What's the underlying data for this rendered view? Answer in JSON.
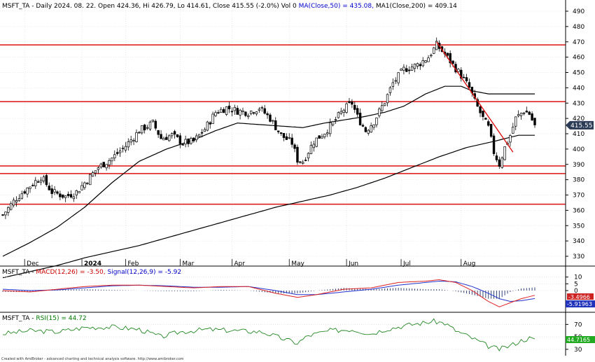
{
  "chart_data": [
    {
      "type": "candlestick",
      "title": "MSFT_TA - Daily 2024. 08. 22. Open 424.36, Hi 426.79, Lo 414.61, Close 415.55 (-2.0%) Vol 0",
      "ma50_label": "MA(Close,50) = 435.08,",
      "ma200_label": "MA1(Close,200) = 409.14",
      "ylim": [
        325,
        495
      ],
      "yticks": [
        330,
        340,
        350,
        360,
        370,
        380,
        390,
        400,
        410,
        420,
        430,
        440,
        450,
        460,
        470,
        480,
        490
      ],
      "x_labels": [
        {
          "label": "Dec",
          "index": 8
        },
        {
          "label": "2024",
          "index": 29,
          "bold": true
        },
        {
          "label": "Feb",
          "index": 45
        },
        {
          "label": "Mar",
          "index": 65
        },
        {
          "label": "Apr",
          "index": 84
        },
        {
          "label": "May",
          "index": 105
        },
        {
          "label": "Jun",
          "index": 126
        },
        {
          "label": "Jul",
          "index": 146
        },
        {
          "label": "Aug",
          "index": 168
        }
      ],
      "last_price_label": "415.55",
      "horizontal_lines": [
        468,
        431,
        389,
        384,
        364
      ],
      "trendline": [
        [
          159,
          470
        ],
        [
          187,
          398
        ]
      ],
      "ma50_nodes": [
        [
          0,
          330
        ],
        [
          10,
          339
        ],
        [
          20,
          349
        ],
        [
          30,
          362
        ],
        [
          40,
          378
        ],
        [
          50,
          392
        ],
        [
          60,
          400
        ],
        [
          70,
          406
        ],
        [
          78,
          412
        ],
        [
          86,
          417
        ],
        [
          94,
          416
        ],
        [
          102,
          415
        ],
        [
          110,
          414
        ],
        [
          118,
          417
        ],
        [
          125,
          419
        ],
        [
          132,
          421
        ],
        [
          140,
          424
        ],
        [
          147,
          428
        ],
        [
          155,
          436
        ],
        [
          162,
          441
        ],
        [
          168,
          441
        ],
        [
          172,
          438
        ],
        [
          178,
          436
        ],
        [
          189,
          436
        ]
      ],
      "ma200_nodes": [
        [
          0,
          316
        ],
        [
          10,
          320
        ],
        [
          20,
          324
        ],
        [
          30,
          329
        ],
        [
          40,
          333
        ],
        [
          50,
          337
        ],
        [
          60,
          342
        ],
        [
          70,
          347
        ],
        [
          80,
          352
        ],
        [
          90,
          357
        ],
        [
          100,
          362
        ],
        [
          110,
          366
        ],
        [
          120,
          370
        ],
        [
          130,
          375
        ],
        [
          140,
          381
        ],
        [
          150,
          388
        ],
        [
          160,
          395
        ],
        [
          170,
          401
        ],
        [
          180,
          405
        ],
        [
          189,
          409
        ]
      ],
      "price_nodes": [
        [
          0,
          357
        ],
        [
          5,
          368
        ],
        [
          10,
          376
        ],
        [
          14,
          382
        ],
        [
          18,
          372
        ],
        [
          23,
          369
        ],
        [
          27,
          372
        ],
        [
          30,
          378
        ],
        [
          35,
          388
        ],
        [
          40,
          394
        ],
        [
          45,
          402
        ],
        [
          50,
          412
        ],
        [
          55,
          417
        ],
        [
          58,
          407
        ],
        [
          62,
          409
        ],
        [
          66,
          404
        ],
        [
          70,
          405
        ],
        [
          74,
          413
        ],
        [
          78,
          424
        ],
        [
          82,
          427
        ],
        [
          86,
          425
        ],
        [
          90,
          424
        ],
        [
          94,
          427
        ],
        [
          98,
          420
        ],
        [
          102,
          409
        ],
        [
          106,
          404
        ],
        [
          108,
          393
        ],
        [
          110,
          392
        ],
        [
          114,
          405
        ],
        [
          118,
          411
        ],
        [
          121,
          417
        ],
        [
          125,
          426
        ],
        [
          128,
          430
        ],
        [
          130,
          421
        ],
        [
          133,
          412
        ],
        [
          136,
          418
        ],
        [
          140,
          431
        ],
        [
          143,
          443
        ],
        [
          147,
          452
        ],
        [
          152,
          455
        ],
        [
          156,
          460
        ],
        [
          159,
          468
        ],
        [
          162,
          462
        ],
        [
          165,
          455
        ],
        [
          168,
          448
        ],
        [
          171,
          440
        ],
        [
          173,
          431
        ],
        [
          176,
          420
        ],
        [
          178,
          414
        ],
        [
          180,
          398
        ],
        [
          182,
          390
        ],
        [
          184,
          401
        ],
        [
          186,
          409
        ],
        [
          188,
          420
        ],
        [
          191,
          425
        ],
        [
          193,
          423
        ],
        [
          195,
          415
        ]
      ]
    },
    {
      "type": "line",
      "title_prefix": "MSFT_TA - ",
      "macd_label": "MACD(12,26) = -3.50,",
      "signal_label": "Signal(12,26,9) = -5.92",
      "ylim": [
        -15,
        15
      ],
      "yticks": [
        10,
        5,
        0
      ],
      "macd_badge": "-3.4966",
      "signal_badge": "-5.91963"
    },
    {
      "type": "line",
      "title_prefix": "MSFT_TA - ",
      "rsi_label": "RSI(15) = 44.72",
      "ylim": [
        22,
        85
      ],
      "yticks": [
        70,
        50,
        30
      ],
      "rsi_badge": "44.7165"
    }
  ],
  "footer": "Created with AmiBroker - advanced charting and technical analysis software. http://www.amibroker.com"
}
